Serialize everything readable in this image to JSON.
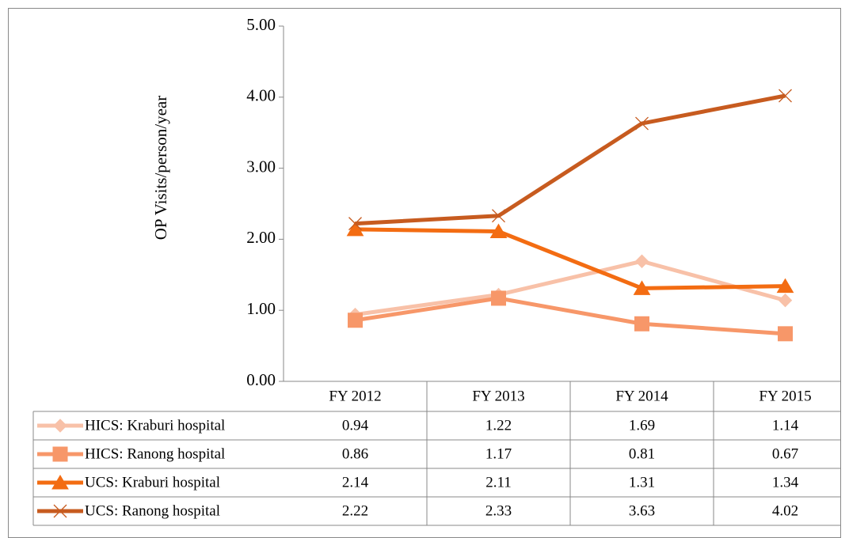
{
  "chart_data": {
    "type": "line",
    "y_label": "OP Visits/person/year",
    "categories": [
      "FY 2012",
      "FY 2013",
      "FY 2014",
      "FY 2015"
    ],
    "series": [
      {
        "name": "HICS: Kraburi hospital",
        "color": "#f8c1a8",
        "marker": "diamond",
        "values": [
          0.94,
          1.22,
          1.69,
          1.14
        ]
      },
      {
        "name": "HICS: Ranong hospital",
        "color": "#f79769",
        "marker": "square",
        "values": [
          0.86,
          1.17,
          0.81,
          0.67
        ]
      },
      {
        "name": "UCS: Kraburi hospital",
        "color": "#f36c12",
        "marker": "triangle",
        "values": [
          2.14,
          2.11,
          1.31,
          1.34
        ]
      },
      {
        "name": "UCS: Ranong hospital",
        "color": "#c75b1f",
        "marker": "x",
        "values": [
          2.22,
          2.33,
          3.63,
          4.02
        ]
      }
    ],
    "ylim": [
      0,
      5
    ],
    "yticks": [
      {
        "value": 0,
        "label": "0.00"
      },
      {
        "value": 1,
        "label": "1.00"
      },
      {
        "value": 2,
        "label": "2.00"
      },
      {
        "value": 3,
        "label": "3.00"
      },
      {
        "value": 4,
        "label": "4.00"
      },
      {
        "value": 5,
        "label": "5.00"
      }
    ],
    "data_table": true
  }
}
